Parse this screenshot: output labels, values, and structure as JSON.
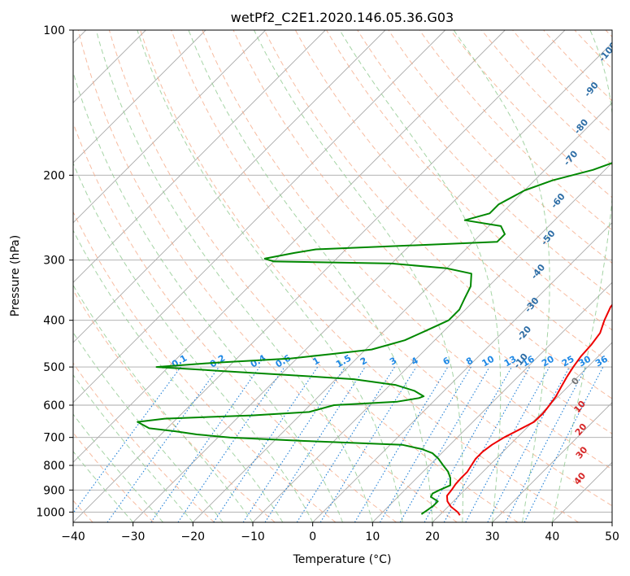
{
  "chart_data": {
    "type": "line",
    "title": "wetPf2_C2E1.2020.146.05.36.G03",
    "xlabel": "Temperature (°C)",
    "ylabel": "Pressure (hPa)",
    "xlim": [
      -40,
      50
    ],
    "ylim": [
      1050,
      100
    ],
    "y_scale": "log",
    "x_ticks": [
      -40,
      -30,
      -20,
      -10,
      0,
      10,
      20,
      30,
      40,
      50
    ],
    "y_ticks": [
      100,
      200,
      300,
      400,
      500,
      600,
      700,
      800,
      900,
      1000
    ],
    "grid": true,
    "skew_lines_visible": true,
    "series": [
      {
        "color": "#ee0000",
        "points": [
          [
            1015,
            23.4
          ],
          [
            1000,
            22.5
          ],
          [
            975,
            20.5
          ],
          [
            950,
            19.0
          ],
          [
            925,
            18.0
          ],
          [
            900,
            17.8
          ],
          [
            875,
            17.5
          ],
          [
            850,
            17.4
          ],
          [
            825,
            17.4
          ],
          [
            800,
            17.0
          ],
          [
            775,
            16.6
          ],
          [
            750,
            16.6
          ],
          [
            725,
            17.0
          ],
          [
            700,
            17.8
          ],
          [
            675,
            19.0
          ],
          [
            650,
            20.2
          ],
          [
            625,
            20.3
          ],
          [
            600,
            20.0
          ],
          [
            575,
            19.6
          ],
          [
            550,
            18.9
          ],
          [
            525,
            18.2
          ],
          [
            500,
            17.6
          ],
          [
            475,
            17.1
          ],
          [
            450,
            16.9
          ],
          [
            425,
            16.4
          ],
          [
            400,
            15.0
          ],
          [
            375,
            13.8
          ],
          [
            350,
            13.4
          ],
          [
            325,
            13.3
          ],
          [
            300,
            13.2
          ],
          [
            275,
            12.5
          ],
          [
            250,
            11.7
          ],
          [
            225,
            10.6
          ],
          [
            200,
            9.0
          ],
          [
            180,
            7.6
          ],
          [
            160,
            6.2
          ],
          [
            140,
            5.5
          ],
          [
            130,
            4.8
          ],
          [
            120,
            4.8
          ],
          [
            110,
            5.1
          ],
          [
            105,
            5.3
          ],
          [
            100,
            5.9
          ]
        ]
      },
      {
        "color": "#008800",
        "points": [
          [
            1010,
            16.8
          ],
          [
            990,
            17.1
          ],
          [
            970,
            17.4
          ],
          [
            950,
            17.4
          ],
          [
            930,
            15.5
          ],
          [
            915,
            15.2
          ],
          [
            900,
            15.8
          ],
          [
            880,
            16.8
          ],
          [
            850,
            15.6
          ],
          [
            825,
            14.2
          ],
          [
            800,
            12.3
          ],
          [
            775,
            10.4
          ],
          [
            755,
            8.5
          ],
          [
            740,
            6.0
          ],
          [
            725,
            2.0
          ],
          [
            712,
            -15.0
          ],
          [
            700,
            -28.0
          ],
          [
            690,
            -34.0
          ],
          [
            680,
            -38.0
          ],
          [
            670,
            -43.0
          ],
          [
            650,
            -46.0
          ],
          [
            640,
            -42.0
          ],
          [
            630,
            -28.0
          ],
          [
            620,
            -19.0
          ],
          [
            600,
            -16.0
          ],
          [
            590,
            -6.0
          ],
          [
            580,
            -3.0
          ],
          [
            575,
            -2.5
          ],
          [
            560,
            -5.0
          ],
          [
            545,
            -9.0
          ],
          [
            530,
            -17.0
          ],
          [
            520,
            -28.0
          ],
          [
            510,
            -40.0
          ],
          [
            500,
            -52.0
          ],
          [
            490,
            -43.0
          ],
          [
            480,
            -31.0
          ],
          [
            470,
            -25.0
          ],
          [
            460,
            -19.0
          ],
          [
            450,
            -17.0
          ],
          [
            440,
            -15.0
          ],
          [
            420,
            -13.0
          ],
          [
            400,
            -11.0
          ],
          [
            380,
            -11.0
          ],
          [
            360,
            -12.0
          ],
          [
            340,
            -13.0
          ],
          [
            320,
            -15.0
          ],
          [
            312,
            -20.0
          ],
          [
            305,
            -30.0
          ],
          [
            302,
            -50.0
          ],
          [
            298,
            -52.0
          ],
          [
            290,
            -48.0
          ],
          [
            285,
            -45.0
          ],
          [
            275,
            -16.0
          ],
          [
            265,
            -16.0
          ],
          [
            255,
            -18.0
          ],
          [
            248,
            -25.0
          ],
          [
            240,
            -22.0
          ],
          [
            230,
            -22.0
          ],
          [
            215,
            -20.0
          ],
          [
            205,
            -17.0
          ],
          [
            195,
            -12.0
          ],
          [
            180,
            -7.0
          ],
          [
            160,
            -4.0
          ],
          [
            145,
            -2.0
          ],
          [
            130,
            -1.0
          ],
          [
            120,
            -2.0
          ],
          [
            110,
            -1.0
          ],
          [
            104,
            0.5
          ],
          [
            100,
            1.0
          ]
        ]
      }
    ],
    "dry_adiabat_labels": [
      "-100",
      "-90",
      "-80",
      "-70",
      "-60",
      "-50",
      "-40",
      "-30",
      "-20",
      "-10",
      "0",
      "10",
      "20",
      "30",
      "40"
    ],
    "mixing_ratio_labels": [
      "0.1",
      "0.2",
      "0.4",
      "0.6",
      "1",
      "1.5",
      "2",
      "3",
      "4",
      "6",
      "8",
      "10",
      "13",
      "16",
      "20",
      "25",
      "30",
      "36"
    ],
    "colors": {
      "temperature": "#ee0000",
      "dewpoint": "#008800",
      "isotherm": "#aaaaaa",
      "dry_adiabat": "#f4a582",
      "moist_adiabat": "#8fc98f",
      "mixing_ratio": "#1f7fd6",
      "label_dry_low": "#2e6ea6",
      "label_dry_high": "#d62728",
      "label_mixing": "#1e88e5"
    }
  }
}
